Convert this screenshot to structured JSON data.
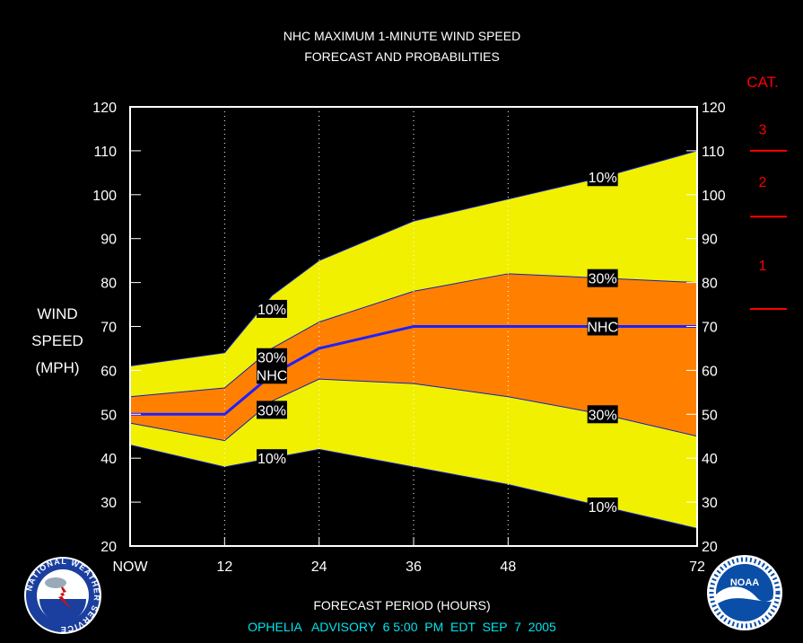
{
  "title_line1": "NHC MAXIMUM 1-MINUTE WIND SPEED",
  "title_line2": "FORECAST AND PROBABILITIES",
  "ylabel_lines": [
    "WIND",
    "SPEED",
    "(MPH)"
  ],
  "xlabel": "FORECAST PERIOD (HOURS)",
  "advisory": "OPHELIA   ADVISORY  6 5:00  PM  EDT  SEP  7  2005",
  "logo_left": "NATIONAL WEATHER SERVICE",
  "logo_right": "NOAA",
  "colors": {
    "background": "#000000",
    "outer_band": "#f0f000",
    "inner_band": "#ff8000",
    "nhc_line": "#2020ff",
    "text": "#ffffff",
    "advisory": "#00e5ee",
    "category": "#ff0000"
  },
  "chart_data": {
    "type": "area",
    "title": "NHC MAXIMUM 1-MINUTE WIND SPEED FORECAST AND PROBABILITIES",
    "xlabel": "FORECAST PERIOD (HOURS)",
    "ylabel": "WIND SPEED (MPH)",
    "x": [
      0,
      12,
      18,
      24,
      36,
      48,
      60,
      72
    ],
    "x_ticks": [
      {
        "value": 0,
        "label": "NOW"
      },
      {
        "value": 12,
        "label": "12"
      },
      {
        "value": 24,
        "label": "24"
      },
      {
        "value": 36,
        "label": "36"
      },
      {
        "value": 48,
        "label": "48"
      },
      {
        "value": 72,
        "label": "72"
      }
    ],
    "xlim": [
      0,
      72
    ],
    "ylim": [
      20,
      120
    ],
    "y_ticks": [
      20,
      30,
      40,
      50,
      60,
      70,
      80,
      90,
      100,
      110,
      120
    ],
    "gridlines_x": [
      12,
      24,
      36,
      48
    ],
    "series": [
      {
        "name": "10%",
        "values": [
          61,
          64,
          77,
          85,
          94,
          99,
          104,
          110
        ]
      },
      {
        "name": "30%",
        "values": [
          54,
          56,
          65,
          71,
          78,
          82,
          81,
          80
        ]
      },
      {
        "name": "NHC",
        "values": [
          50,
          50,
          59,
          65,
          70,
          70,
          70,
          70
        ]
      },
      {
        "name": "30%",
        "values": [
          48,
          44,
          53,
          58,
          57,
          54,
          50,
          45
        ]
      },
      {
        "name": "10%",
        "values": [
          43,
          38,
          40,
          42,
          38,
          34,
          29,
          24
        ]
      }
    ],
    "band_labels": [
      {
        "text": "10%",
        "x": 18,
        "y": 74
      },
      {
        "text": "30%",
        "x": 18,
        "y": 63
      },
      {
        "text": "NHC",
        "x": 18,
        "y": 59
      },
      {
        "text": "30%",
        "x": 18,
        "y": 51
      },
      {
        "text": "10%",
        "x": 18,
        "y": 40
      },
      {
        "text": "10%",
        "x": 60,
        "y": 104
      },
      {
        "text": "30%",
        "x": 60,
        "y": 81
      },
      {
        "text": "NHC",
        "x": 60,
        "y": 70
      },
      {
        "text": "30%",
        "x": 60,
        "y": 50
      },
      {
        "text": "10%",
        "x": 60,
        "y": 29
      }
    ],
    "category_header": "CAT.",
    "categories": [
      {
        "label": "3",
        "y": 115
      },
      {
        "label": "2",
        "y": 103
      },
      {
        "label": "1",
        "y": 84
      }
    ],
    "category_thresholds": [
      110,
      95,
      74
    ]
  }
}
